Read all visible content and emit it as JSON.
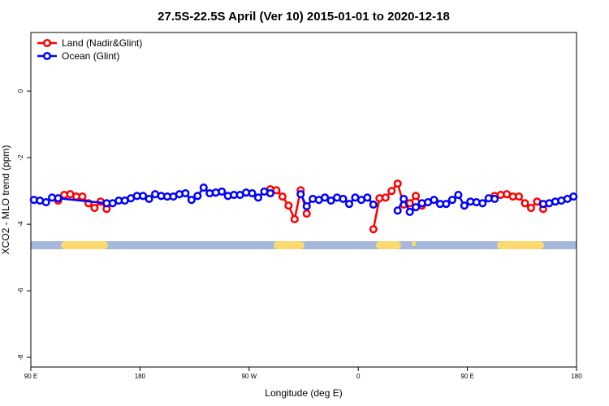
{
  "chart_data": {
    "type": "line",
    "title": "27.5S-22.5S April (Ver 10)   2015-01-01 to 2020-12-18",
    "x_label": "Longitude (deg E)",
    "y_label": "XCO2 - MLO trend (ppm)",
    "xlim": [
      90,
      540
    ],
    "xticks": [
      {
        "value": 90,
        "label": "90 E"
      },
      180,
      {
        "value": 270,
        "label": "90 W"
      },
      {
        "value": 360,
        "label": "0"
      },
      {
        "value": 450,
        "label": "90 E"
      },
      {
        "value": 540,
        "label": "180"
      }
    ],
    "ylim": [
      -8.29,
      1.76
    ],
    "yticks": [
      -8,
      -6,
      -4,
      -2,
      0
    ],
    "legend": "top-left",
    "series": [
      {
        "name": "Land (Nadir&Glint)",
        "color": "#ff0000",
        "x": [
          112.5,
          117.5,
          122.5,
          127.5,
          132.5,
          137.5,
          142.5,
          147.5,
          152.5,
          200,
          287.5,
          292.5,
          297.5,
          302.5,
          307.5,
          312.5,
          317.5,
          340,
          372.5,
          377.5,
          382.5,
          387.5,
          392.5,
          397.5,
          402.5,
          407.5,
          412.5,
          440,
          472.5,
          477.5,
          482.5,
          487.5,
          492.5,
          497.5,
          502.5,
          507.5,
          512.5
        ],
        "values": [
          -3.29,
          -3.12,
          -3.1,
          -3.17,
          -3.17,
          -3.37,
          -3.51,
          -3.32,
          -3.54,
          null,
          -2.95,
          -2.98,
          -3.17,
          -3.44,
          -3.85,
          -2.98,
          -3.68,
          null,
          -4.15,
          -3.22,
          -3.2,
          -3.0,
          -2.78,
          -3.41,
          -3.37,
          -3.15,
          -3.44,
          null,
          -3.15,
          -3.12,
          -3.1,
          -3.17,
          -3.17,
          -3.37,
          -3.51,
          -3.32,
          -3.54
        ]
      },
      {
        "name": "Ocean (Glint)",
        "color": "#0000ff",
        "x": [
          92.5,
          97.5,
          102.5,
          107.5,
          112.5,
          152.5,
          157.5,
          162.5,
          167.5,
          172.5,
          177.5,
          182.5,
          187.5,
          192.5,
          197.5,
          202.5,
          207.5,
          212.5,
          217.5,
          222.5,
          227.5,
          232.5,
          237.5,
          242.5,
          247.5,
          252.5,
          257.5,
          262.5,
          267.5,
          272.5,
          277.5,
          282.5,
          287.5,
          300,
          312.5,
          317.5,
          322.5,
          327.5,
          332.5,
          337.5,
          342.5,
          347.5,
          352.5,
          357.5,
          362.5,
          367.5,
          372.5,
          382.5,
          392.5,
          397.5,
          402.5,
          407.5,
          412.5,
          417.5,
          422.5,
          427.5,
          432.5,
          437.5,
          442.5,
          447.5,
          452.5,
          457.5,
          462.5,
          467.5,
          472.5,
          490,
          512.5,
          517.5,
          522.5,
          527.5,
          532.5,
          537.5
        ],
        "values": [
          -3.27,
          -3.29,
          -3.34,
          -3.2,
          -3.22,
          -3.37,
          -3.37,
          -3.29,
          -3.29,
          -3.22,
          -3.15,
          -3.15,
          -3.24,
          -3.1,
          -3.15,
          -3.17,
          -3.17,
          -3.1,
          -3.07,
          -3.27,
          -3.15,
          -2.9,
          -3.07,
          -3.05,
          -3.02,
          -3.15,
          -3.12,
          -3.12,
          -3.05,
          -3.07,
          -3.2,
          -3.02,
          -3.07,
          null,
          -3.1,
          -3.46,
          -3.24,
          -3.27,
          -3.2,
          -3.29,
          -3.2,
          -3.24,
          -3.39,
          -3.2,
          -3.27,
          -3.2,
          -3.41,
          null,
          -3.59,
          -3.24,
          -3.63,
          -3.49,
          -3.37,
          -3.34,
          -3.27,
          -3.39,
          -3.39,
          -3.27,
          -3.12,
          -3.44,
          -3.32,
          -3.34,
          -3.37,
          -3.22,
          -3.24,
          null,
          -3.39,
          -3.37,
          -3.32,
          -3.29,
          -3.24,
          -3.17
        ]
      }
    ]
  }
}
